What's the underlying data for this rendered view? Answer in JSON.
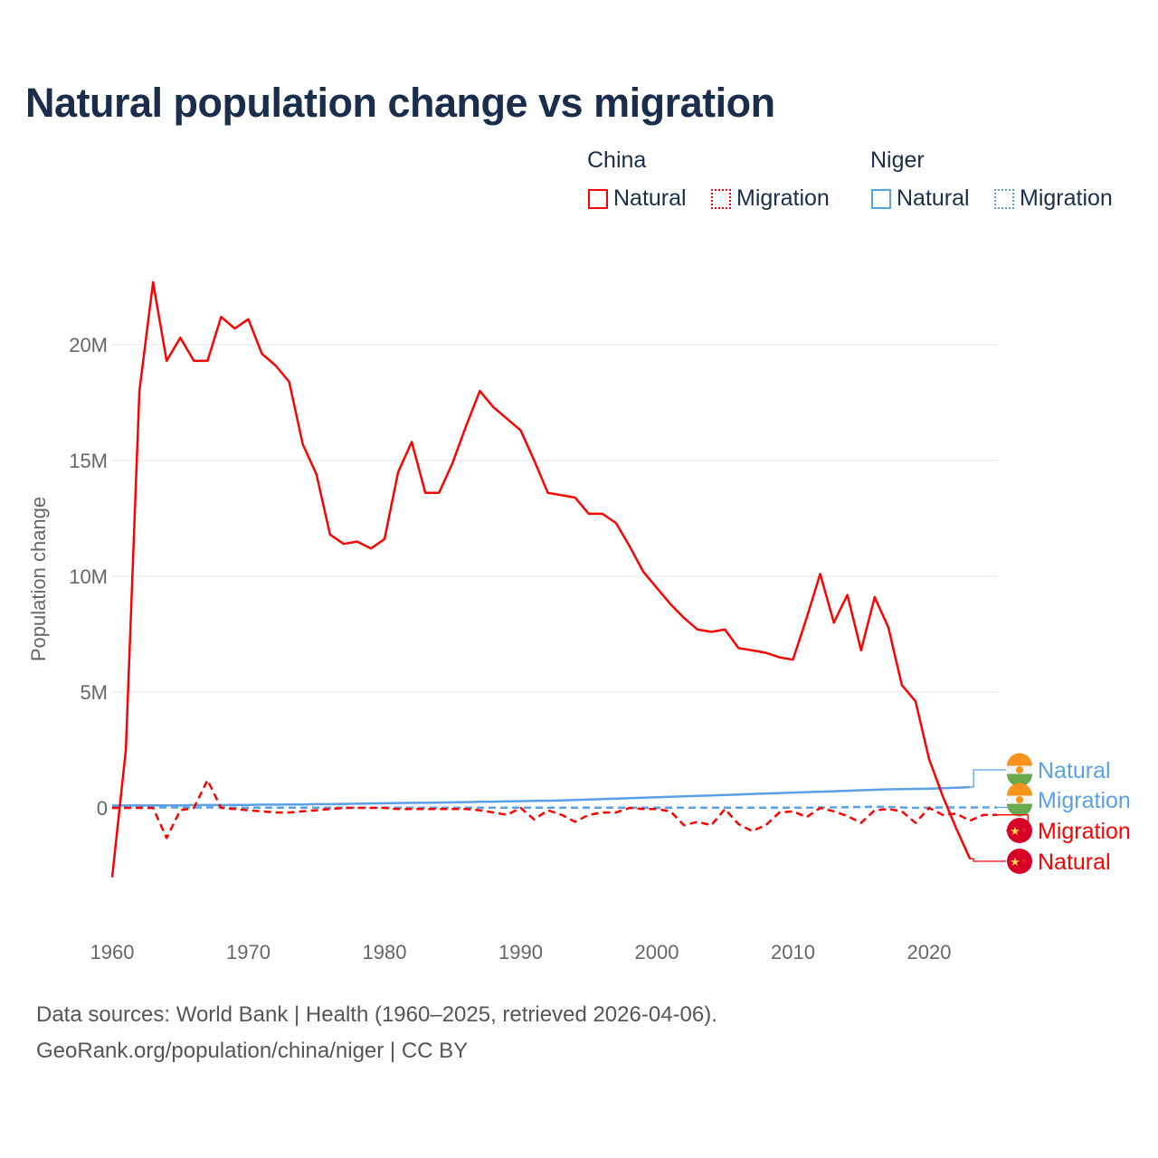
{
  "chart_data": {
    "type": "line",
    "title": "Natural population change vs migration",
    "ylabel": "Population change",
    "xlabel": "",
    "ylim": [
      -3.5,
      25
    ],
    "xlim": [
      1960,
      2025
    ],
    "y_ticks": [
      {
        "v": 0,
        "label": "0"
      },
      {
        "v": 5,
        "label": "5M"
      },
      {
        "v": 10,
        "label": "10M"
      },
      {
        "v": 15,
        "label": "15M"
      },
      {
        "v": 20,
        "label": "20M"
      }
    ],
    "x_ticks": [
      1960,
      1970,
      1980,
      1990,
      2000,
      2010,
      2020
    ],
    "grid": true,
    "units": "millions",
    "legend_groups": [
      {
        "name": "China",
        "items": [
          "Natural",
          "Migration"
        ]
      },
      {
        "name": "Niger",
        "items": [
          "Natural",
          "Migration"
        ]
      }
    ],
    "series": [
      {
        "name": "China Natural",
        "country": "China",
        "kind": "Natural",
        "color": "#ff0000",
        "dash": false,
        "x_start": 1960,
        "values": [
          -3.0,
          2.5,
          18.0,
          22.7,
          19.3,
          20.3,
          19.3,
          19.3,
          21.2,
          20.7,
          21.1,
          19.6,
          19.1,
          18.4,
          15.7,
          14.4,
          11.8,
          11.4,
          11.5,
          11.2,
          11.6,
          14.5,
          15.8,
          13.6,
          13.6,
          14.9,
          16.5,
          18.0,
          17.3,
          16.8,
          16.3,
          15.0,
          13.6,
          13.5,
          13.4,
          12.7,
          12.7,
          12.3,
          11.3,
          10.2,
          9.5,
          8.8,
          8.2,
          7.7,
          7.6,
          7.7,
          6.9,
          6.8,
          6.7,
          6.5,
          6.4,
          8.2,
          10.1,
          8.0,
          9.2,
          6.8,
          9.1,
          7.8,
          5.3,
          4.6,
          2.1,
          0.5,
          -0.9,
          -2.2
        ]
      },
      {
        "name": "China Migration",
        "country": "China",
        "kind": "Migration",
        "color": "#ff0000",
        "dash": true,
        "x_start": 1960,
        "values": [
          0,
          0,
          0,
          0,
          -1.3,
          -0.1,
          0,
          1.2,
          0,
          -0.05,
          -0.1,
          -0.15,
          -0.2,
          -0.2,
          -0.15,
          -0.1,
          -0.05,
          0,
          0,
          0,
          0,
          -0.05,
          -0.05,
          -0.05,
          -0.05,
          -0.05,
          -0.05,
          -0.1,
          -0.2,
          -0.3,
          0,
          -0.5,
          -0.1,
          -0.3,
          -0.6,
          -0.3,
          -0.2,
          -0.2,
          0,
          -0.05,
          -0.05,
          -0.15,
          -0.75,
          -0.6,
          -0.75,
          -0.05,
          -0.7,
          -1.0,
          -0.75,
          -0.2,
          -0.15,
          -0.4,
          0,
          -0.15,
          -0.35,
          -0.65,
          -0.1,
          -0.05,
          -0.15,
          -0.65,
          0,
          -0.3,
          -0.25,
          -0.55,
          -0.3,
          -0.3
        ]
      },
      {
        "name": "Niger Natural",
        "country": "Niger",
        "kind": "Natural",
        "color": "#5aa0e6",
        "dash": false,
        "x_start": 1960,
        "values": [
          0.1,
          0.1,
          0.1,
          0.11,
          0.11,
          0.11,
          0.12,
          0.12,
          0.12,
          0.13,
          0.13,
          0.14,
          0.14,
          0.15,
          0.15,
          0.16,
          0.16,
          0.17,
          0.18,
          0.19,
          0.2,
          0.21,
          0.22,
          0.22,
          0.23,
          0.24,
          0.25,
          0.26,
          0.27,
          0.28,
          0.29,
          0.3,
          0.31,
          0.32,
          0.34,
          0.36,
          0.38,
          0.4,
          0.42,
          0.44,
          0.46,
          0.48,
          0.5,
          0.52,
          0.54,
          0.56,
          0.58,
          0.6,
          0.62,
          0.64,
          0.66,
          0.68,
          0.7,
          0.72,
          0.74,
          0.76,
          0.78,
          0.8,
          0.81,
          0.82,
          0.83,
          0.85,
          0.87,
          0.9
        ]
      },
      {
        "name": "Niger Migration",
        "country": "Niger",
        "kind": "Migration",
        "color": "#5aa0e6",
        "dash": true,
        "x_start": 1960,
        "values": [
          0.02,
          0.02,
          0.02,
          0.02,
          0.02,
          0.02,
          0.02,
          0.02,
          0.02,
          0.01,
          0.01,
          0.01,
          0.01,
          0.01,
          0.01,
          0.01,
          0.01,
          0.01,
          0.01,
          0.01,
          0.01,
          0.01,
          0.01,
          0.01,
          0.01,
          0.01,
          0.01,
          0.01,
          0.01,
          0.01,
          0.01,
          0.01,
          0.01,
          0.01,
          0.01,
          0.01,
          0.01,
          0.01,
          0.01,
          0.01,
          0.01,
          0.01,
          0.01,
          0.01,
          0.01,
          0.01,
          0.01,
          0.01,
          0.01,
          0.01,
          0.01,
          0.01,
          0.02,
          0.02,
          0.03,
          0.04,
          0.05,
          0.04,
          0.02,
          0.0,
          0.01,
          0.02,
          0.02,
          0.02,
          0.02,
          0.02
        ]
      }
    ],
    "end_labels": [
      {
        "text": "Natural",
        "country": "Niger",
        "color": "#5aa0e6"
      },
      {
        "text": "Migration",
        "country": "Niger",
        "color": "#5aa0e6"
      },
      {
        "text": "Migration",
        "country": "China",
        "color": "#ff0000"
      },
      {
        "text": "Natural",
        "country": "China",
        "color": "#ff0000"
      }
    ]
  },
  "legend": {
    "china": "China",
    "niger": "Niger",
    "natural": "Natural",
    "migration": "Migration"
  },
  "footer": {
    "line1": "Data sources: World Bank | Health (1960–2025, retrieved 2026-04-06).",
    "line2": "GeoRank.org/population/china/niger | CC BY"
  }
}
